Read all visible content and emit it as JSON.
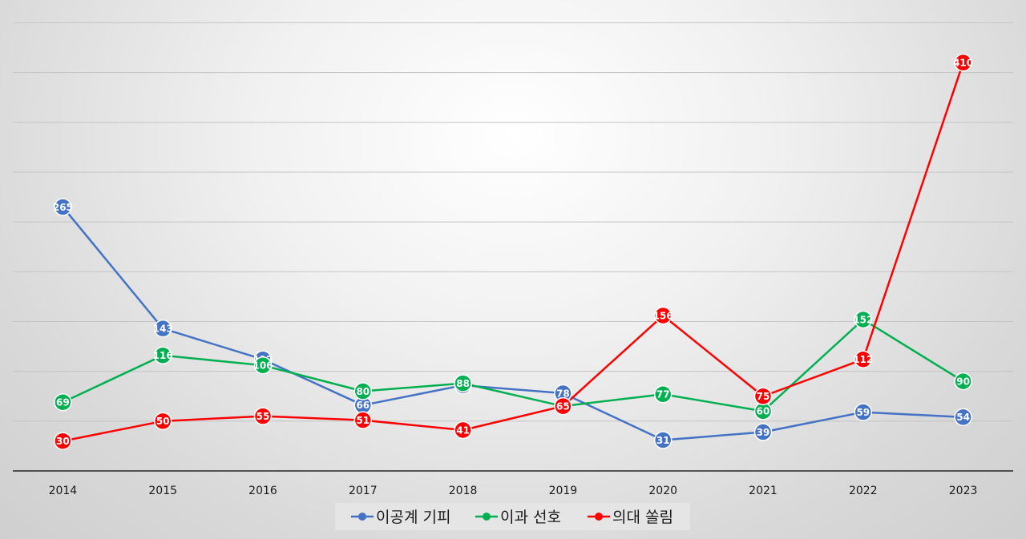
{
  "chart_data": {
    "type": "line",
    "title": "",
    "xlabel": "",
    "ylabel": "",
    "categories": [
      "2014",
      "2015",
      "2016",
      "2017",
      "2018",
      "2019",
      "2020",
      "2021",
      "2022",
      "2023"
    ],
    "ylim": [
      0,
      460
    ],
    "y_gridlines": true,
    "y_tick_labels_visible": false,
    "legend": "bottom",
    "series": [
      {
        "name": "이공계 기피",
        "color": "#4472C4",
        "values": [
          265,
          143,
          112,
          66,
          86,
          78,
          31,
          39,
          59,
          54
        ]
      },
      {
        "name": "이과 선호",
        "color": "#00B050",
        "values": [
          69,
          116,
          106,
          80,
          88,
          65,
          77,
          60,
          152,
          90
        ]
      },
      {
        "name": "의대 쏠림",
        "color": "#FF0000",
        "values": [
          30,
          50,
          55,
          51,
          41,
          65,
          156,
          75,
          112,
          410
        ]
      }
    ]
  }
}
